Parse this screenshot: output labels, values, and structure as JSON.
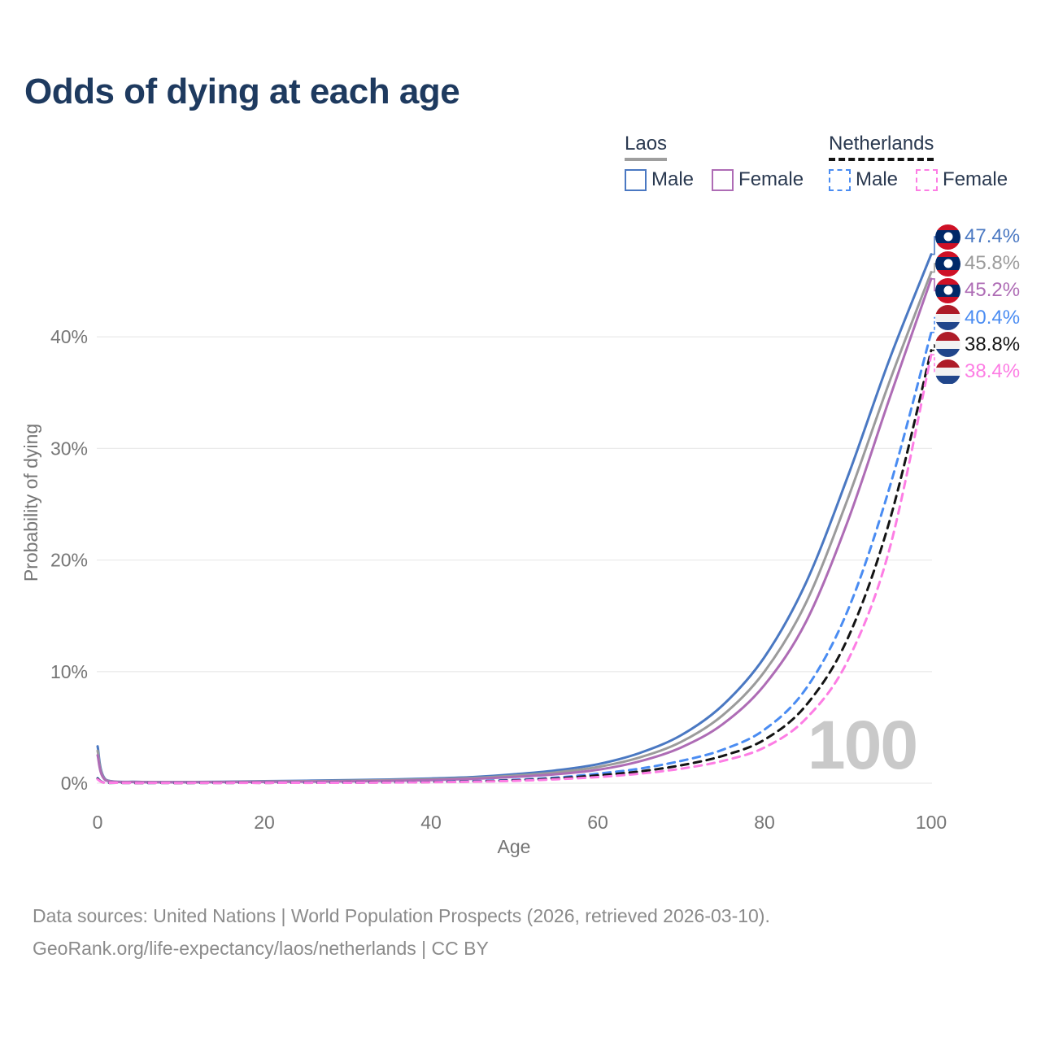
{
  "title": "Odds of dying at each age",
  "watermark_age": "100",
  "legend": {
    "groups": [
      {
        "name": "Laos",
        "line_style": "solid",
        "swatch_color": "#9e9e9e",
        "items": [
          {
            "label": "Male",
            "color": "#4a78c2"
          },
          {
            "label": "Female",
            "color": "#ae6cb5"
          }
        ]
      },
      {
        "name": "Netherlands",
        "line_style": "dashed",
        "swatch_color": "#141414",
        "items": [
          {
            "label": "Male",
            "color": "#4a8cf2"
          },
          {
            "label": "Female",
            "color": "#fd7de4"
          }
        ]
      }
    ]
  },
  "axes": {
    "x": {
      "label": "Age",
      "ticks": [
        0,
        20,
        40,
        60,
        80,
        100
      ],
      "range": [
        0,
        100
      ]
    },
    "y": {
      "label": "Probability of dying",
      "ticks": [
        {
          "value": 0,
          "label": "0%"
        },
        {
          "value": 10,
          "label": "10%"
        },
        {
          "value": 20,
          "label": "20%"
        },
        {
          "value": 30,
          "label": "30%"
        },
        {
          "value": 40,
          "label": "40%"
        }
      ],
      "range": [
        0,
        48
      ]
    }
  },
  "chart_data": {
    "type": "line",
    "xlabel": "Age",
    "ylabel": "Probability of dying",
    "x_ages": [
      0,
      1,
      5,
      10,
      15,
      20,
      25,
      30,
      35,
      40,
      45,
      50,
      55,
      60,
      65,
      70,
      75,
      80,
      85,
      90,
      95,
      100
    ],
    "series": [
      {
        "name": "Laos Male",
        "country": "Laos",
        "sex": "Male",
        "style": "solid",
        "color": "#4a78c2",
        "end_label": "47.4%",
        "flag": "laos",
        "values": [
          3.3,
          0.3,
          0.12,
          0.1,
          0.13,
          0.18,
          0.22,
          0.27,
          0.33,
          0.42,
          0.55,
          0.8,
          1.15,
          1.7,
          2.7,
          4.3,
          7.0,
          11.3,
          18.0,
          27.5,
          38.0,
          47.4
        ]
      },
      {
        "name": "Laos Both sexes",
        "country": "Laos",
        "sex": "Both",
        "style": "solid",
        "color": "#9b9b9b",
        "end_label": "45.8%",
        "flag": "laos",
        "values": [
          2.9,
          0.27,
          0.11,
          0.09,
          0.11,
          0.15,
          0.18,
          0.22,
          0.27,
          0.35,
          0.47,
          0.68,
          0.97,
          1.45,
          2.3,
          3.7,
          6.1,
          10.0,
          16.2,
          25.5,
          36.0,
          45.8
        ]
      },
      {
        "name": "Laos Female",
        "country": "Laos",
        "sex": "Female",
        "style": "solid",
        "color": "#ae6cb5",
        "end_label": "45.2%",
        "flag": "laos",
        "values": [
          2.5,
          0.24,
          0.1,
          0.08,
          0.1,
          0.12,
          0.14,
          0.17,
          0.21,
          0.28,
          0.38,
          0.56,
          0.8,
          1.2,
          1.95,
          3.2,
          5.3,
          8.8,
          14.5,
          23.5,
          34.5,
          45.2
        ]
      },
      {
        "name": "Netherlands Male",
        "country": "Netherlands",
        "sex": "Male",
        "style": "dashed",
        "color": "#4a8cf2",
        "end_label": "40.4%",
        "flag": "netherlands",
        "values": [
          0.45,
          0.03,
          0.01,
          0.01,
          0.02,
          0.04,
          0.05,
          0.06,
          0.08,
          0.12,
          0.18,
          0.3,
          0.5,
          0.85,
          1.3,
          2.0,
          3.0,
          4.8,
          8.5,
          15.5,
          26.5,
          40.4
        ]
      },
      {
        "name": "Netherlands Both sexes",
        "country": "Netherlands",
        "sex": "Both",
        "style": "dashed",
        "color": "#141414",
        "end_label": "38.8%",
        "flag": "netherlands",
        "values": [
          0.4,
          0.03,
          0.01,
          0.01,
          0.02,
          0.03,
          0.04,
          0.05,
          0.07,
          0.1,
          0.15,
          0.25,
          0.42,
          0.7,
          1.05,
          1.6,
          2.45,
          3.9,
          7.0,
          13.0,
          23.5,
          38.8
        ]
      },
      {
        "name": "Netherlands Female",
        "country": "Netherlands",
        "sex": "Female",
        "style": "dashed",
        "color": "#fd7de4",
        "end_label": "38.4%",
        "flag": "netherlands",
        "values": [
          0.35,
          0.03,
          0.01,
          0.01,
          0.01,
          0.02,
          0.03,
          0.04,
          0.06,
          0.09,
          0.13,
          0.21,
          0.35,
          0.55,
          0.85,
          1.3,
          2.0,
          3.2,
          5.8,
          11.0,
          21.0,
          38.4
        ]
      }
    ],
    "legend_position": "top-right",
    "grid": "horizontal-only"
  },
  "flags": {
    "laos": {
      "bands": [
        "#CE1126",
        "#002868",
        "#CE1126"
      ],
      "band_pct": [
        25,
        50,
        25
      ],
      "disc": "#ffffff"
    },
    "netherlands": {
      "bands": [
        "#AE1C28",
        "#f2f2f2",
        "#21468B"
      ],
      "band_pct": [
        34,
        33,
        33
      ]
    }
  },
  "colors": {
    "title": "#1e3a5f",
    "axis_text": "#767676",
    "gridline": "#ebebeb",
    "watermark": "#c9c9c9",
    "footer_text": "#8b8b8b",
    "legend_text": "#2a3950"
  },
  "footer": {
    "line1": "Data sources: United Nations | World Population Prospects (2026, retrieved 2026-03-10).",
    "line2": "GeoRank.org/life-expectancy/laos/netherlands | CC BY"
  }
}
